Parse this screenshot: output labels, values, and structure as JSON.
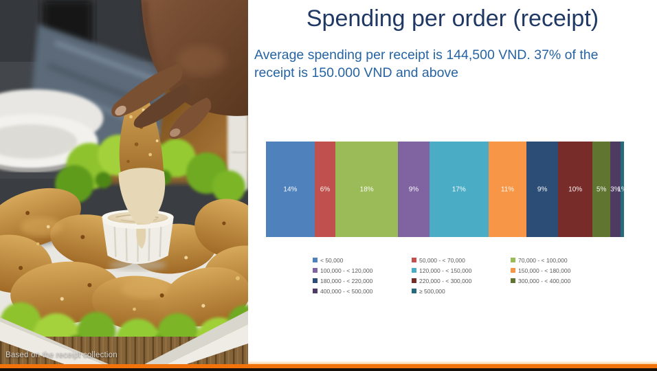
{
  "slide": {
    "title": "Spending per order (receipt)",
    "subtitle": "Average spending per receipt is 144,500 VND. 37% of the receipt is 150.000 VND and above",
    "photo": {
      "caption": "Based on the receipt collection",
      "alt": "hand dipping a fried chicken strip into a white cup of dip on a plate of fried chicken with lettuce"
    },
    "colors": {
      "title_blue": "#1f3864",
      "subtitle_blue": "#2563a3",
      "accent_orange": "#f2730c",
      "footer_dark": "#17100a",
      "legend_text": "#595959",
      "data_label": "#ffffff"
    }
  },
  "chart_data": {
    "type": "bar",
    "variant": "horizontal-stacked",
    "title": "",
    "xlabel": "",
    "ylabel": "",
    "unit": "% of receipts",
    "grid": false,
    "legend_position": "bottom",
    "data_labels": "inside-center white",
    "series": [
      {
        "label": "< 50,000",
        "value": 14,
        "color": "#4f81bd"
      },
      {
        "label": "50,000 - < 70,000",
        "value": 6,
        "color": "#c0504d"
      },
      {
        "label": "70,000 - < 100,000",
        "value": 18,
        "color": "#9bbb59"
      },
      {
        "label": "100,000 - < 120,000",
        "value": 9,
        "color": "#8064a2"
      },
      {
        "label": "120,000 - < 150,000",
        "value": 17,
        "color": "#4bacc6"
      },
      {
        "label": "150,000 - < 180,000",
        "value": 11,
        "color": "#f79646"
      },
      {
        "label": "180,000 - < 220,000",
        "value": 9,
        "color": "#2c4d75"
      },
      {
        "label": "220,000 - < 300,000",
        "value": 10,
        "color": "#772c2a"
      },
      {
        "label": "300,000 - < 400,000",
        "value": 5,
        "color": "#5f7530"
      },
      {
        "label": "400,000 - < 500,000",
        "value": 3,
        "color": "#4d3b62"
      },
      {
        "label": "≥ 500,000",
        "value": 1,
        "color": "#276a7c"
      }
    ]
  }
}
